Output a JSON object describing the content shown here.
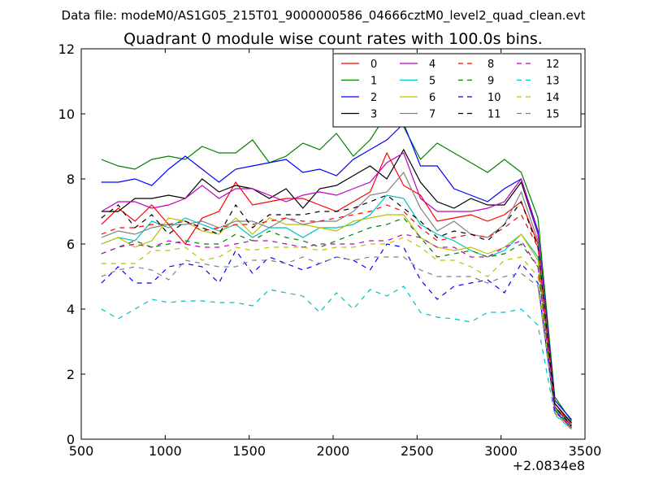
{
  "chart_data": {
    "type": "line",
    "suptitle": "Data file: modeM0/AS1G05_215T01_9000000586_04666cztM0_level2_quad_clean.evt",
    "title": "Quadrant 0 module wise count rates with 100.0s bins.",
    "xlabel": "",
    "ylabel": "",
    "x_offset_label": "+2.0834e8",
    "xlim": [
      500,
      3500
    ],
    "ylim": [
      0,
      12
    ],
    "x_ticks": [
      500,
      1000,
      1500,
      2000,
      2500,
      3000,
      3500
    ],
    "x_tick_labels": [
      "500",
      "1000",
      "1500",
      "2000",
      "2500",
      "3000",
      "3500"
    ],
    "y_ticks": [
      0,
      2,
      4,
      6,
      8,
      10,
      12
    ],
    "y_tick_labels": [
      "0",
      "2",
      "4",
      "6",
      "8",
      "10",
      "12"
    ],
    "grid": false,
    "legend": {
      "placement": "top-right",
      "columns": 4
    },
    "x": [
      620,
      720,
      820,
      920,
      1020,
      1120,
      1220,
      1320,
      1420,
      1520,
      1620,
      1720,
      1820,
      1920,
      2020,
      2120,
      2220,
      2320,
      2420,
      2520,
      2620,
      2720,
      2820,
      2920,
      3020,
      3120,
      3220,
      3320,
      3420
    ],
    "series": [
      {
        "name": "0",
        "color": "#ff0000",
        "dash": "solid",
        "values": [
          6.6,
          7.1,
          6.7,
          7.2,
          6.6,
          6.0,
          6.8,
          7.0,
          7.9,
          7.2,
          7.3,
          7.4,
          7.4,
          7.2,
          7.0,
          7.3,
          7.6,
          8.8,
          7.8,
          7.5,
          6.7,
          6.8,
          6.9,
          6.7,
          6.9,
          7.3,
          6.0,
          1.1,
          0.45
        ]
      },
      {
        "name": "1",
        "color": "#008000",
        "dash": "solid",
        "values": [
          8.6,
          8.4,
          8.3,
          8.6,
          8.7,
          8.6,
          9.0,
          8.8,
          8.8,
          9.2,
          8.5,
          8.7,
          9.1,
          8.9,
          9.4,
          8.7,
          9.2,
          10.0,
          9.6,
          8.6,
          9.1,
          8.8,
          8.5,
          8.2,
          8.6,
          8.2,
          6.8,
          1.3,
          0.55
        ]
      },
      {
        "name": "2",
        "color": "#0000ff",
        "dash": "solid",
        "values": [
          7.9,
          7.9,
          8.0,
          7.8,
          8.3,
          8.7,
          8.3,
          7.9,
          8.3,
          8.4,
          8.5,
          8.6,
          8.2,
          8.3,
          8.1,
          8.6,
          8.9,
          9.2,
          9.7,
          8.4,
          8.4,
          7.7,
          7.5,
          7.3,
          7.7,
          8.0,
          6.4,
          1.2,
          0.6
        ]
      },
      {
        "name": "3",
        "color": "#000000",
        "dash": "solid",
        "values": [
          7.0,
          7.0,
          7.4,
          7.4,
          7.5,
          7.4,
          8.0,
          7.6,
          7.8,
          7.7,
          7.4,
          7.7,
          7.1,
          7.7,
          7.8,
          8.1,
          8.4,
          8.0,
          8.9,
          7.9,
          7.3,
          7.1,
          7.4,
          7.2,
          7.2,
          7.9,
          6.3,
          1.1,
          0.5
        ]
      },
      {
        "name": "4",
        "color": "#bf00bf",
        "dash": "solid",
        "values": [
          7.0,
          7.3,
          7.3,
          7.1,
          7.2,
          7.4,
          7.8,
          7.4,
          7.7,
          7.7,
          7.5,
          7.3,
          7.5,
          7.6,
          7.5,
          7.7,
          7.9,
          8.5,
          8.8,
          7.4,
          7.0,
          7.0,
          7.0,
          7.1,
          7.3,
          8.0,
          6.3,
          1.0,
          0.45
        ]
      },
      {
        "name": "5",
        "color": "#00bfbf",
        "dash": "solid",
        "values": [
          6.0,
          6.2,
          6.1,
          6.7,
          6.5,
          6.8,
          6.6,
          6.4,
          6.6,
          6.2,
          6.5,
          6.5,
          6.2,
          6.5,
          6.5,
          6.6,
          6.9,
          7.5,
          7.4,
          6.6,
          6.3,
          6.1,
          5.8,
          5.6,
          5.8,
          6.3,
          5.6,
          0.95,
          0.4
        ]
      },
      {
        "name": "6",
        "color": "#bfbf00",
        "dash": "solid",
        "values": [
          6.0,
          6.2,
          5.9,
          6.1,
          6.8,
          6.7,
          6.4,
          6.3,
          6.8,
          6.3,
          6.8,
          6.6,
          6.6,
          6.5,
          6.4,
          6.7,
          6.8,
          6.9,
          6.9,
          6.2,
          5.9,
          5.8,
          5.9,
          5.7,
          5.9,
          6.3,
          5.5,
          0.85,
          0.35
        ]
      },
      {
        "name": "7",
        "color": "#808080",
        "dash": "solid",
        "values": [
          6.2,
          6.4,
          6.3,
          6.5,
          6.6,
          6.6,
          6.7,
          6.5,
          6.7,
          6.7,
          6.5,
          6.8,
          6.6,
          6.7,
          6.7,
          7.0,
          7.5,
          7.6,
          8.2,
          7.1,
          6.4,
          6.7,
          6.3,
          6.2,
          6.6,
          7.6,
          6.1,
          1.0,
          0.45
        ]
      },
      {
        "name": "8",
        "color": "#ff0000",
        "dash": "dashed",
        "values": [
          6.3,
          6.5,
          6.5,
          6.6,
          6.6,
          6.7,
          6.4,
          6.5,
          6.6,
          6.6,
          6.7,
          6.8,
          6.7,
          6.7,
          6.8,
          6.9,
          7.0,
          7.2,
          7.0,
          6.5,
          6.1,
          6.2,
          6.3,
          6.2,
          6.5,
          6.9,
          5.9,
          1.0,
          0.4
        ]
      },
      {
        "name": "9",
        "color": "#008000",
        "dash": "dashed",
        "values": [
          5.7,
          5.9,
          6.1,
          5.9,
          6.0,
          6.1,
          6.0,
          6.0,
          6.3,
          6.1,
          6.4,
          6.2,
          6.1,
          5.9,
          6.1,
          6.3,
          6.5,
          6.6,
          6.8,
          6.2,
          5.6,
          5.7,
          5.8,
          5.6,
          5.7,
          6.0,
          5.3,
          0.9,
          0.35
        ]
      },
      {
        "name": "10",
        "color": "#0000ff",
        "dash": "dashed",
        "values": [
          4.8,
          5.3,
          4.8,
          4.8,
          5.3,
          5.4,
          5.3,
          4.8,
          5.8,
          5.1,
          5.6,
          5.4,
          5.2,
          5.4,
          5.6,
          5.5,
          5.2,
          6.0,
          5.9,
          4.9,
          4.3,
          4.7,
          4.8,
          4.9,
          4.5,
          5.4,
          4.8,
          0.85,
          0.35
        ]
      },
      {
        "name": "11",
        "color": "#000000",
        "dash": "dashed",
        "values": [
          6.8,
          7.2,
          6.5,
          6.9,
          6.3,
          6.7,
          6.5,
          6.3,
          7.2,
          6.5,
          6.9,
          6.9,
          6.9,
          7.0,
          7.0,
          7.1,
          7.3,
          7.5,
          7.1,
          6.7,
          6.2,
          6.4,
          6.3,
          6.1,
          6.6,
          7.3,
          5.9,
          1.0,
          0.4
        ]
      },
      {
        "name": "12",
        "color": "#bf00bf",
        "dash": "dashed",
        "values": [
          5.7,
          5.9,
          6.0,
          5.9,
          6.1,
          6.0,
          5.9,
          5.9,
          6.0,
          6.1,
          6.1,
          6.0,
          5.9,
          6.0,
          6.0,
          6.0,
          6.1,
          6.1,
          6.3,
          6.2,
          5.9,
          5.9,
          5.6,
          5.6,
          5.9,
          6.1,
          5.3,
          0.9,
          0.35
        ]
      },
      {
        "name": "13",
        "color": "#00bfbf",
        "dash": "dashed",
        "values": [
          4.0,
          3.7,
          4.0,
          4.3,
          4.2,
          4.25,
          4.25,
          4.2,
          4.2,
          4.1,
          4.6,
          4.5,
          4.4,
          3.9,
          4.5,
          4.0,
          4.6,
          4.4,
          4.7,
          3.9,
          3.75,
          3.7,
          3.6,
          3.9,
          3.9,
          4.0,
          3.5,
          0.75,
          0.3
        ]
      },
      {
        "name": "14",
        "color": "#bfbf00",
        "dash": "dashed",
        "values": [
          5.4,
          5.4,
          5.4,
          5.8,
          5.8,
          5.9,
          5.5,
          5.6,
          5.9,
          5.8,
          5.9,
          5.9,
          5.9,
          5.8,
          5.9,
          5.9,
          6.0,
          6.0,
          6.2,
          5.9,
          5.5,
          5.5,
          5.3,
          5.0,
          5.5,
          5.6,
          5.0,
          0.8,
          0.3
        ]
      },
      {
        "name": "15",
        "color": "#808080",
        "dash": "dashed",
        "values": [
          5.0,
          5.2,
          5.3,
          5.2,
          4.9,
          5.5,
          5.4,
          5.3,
          5.3,
          5.5,
          5.5,
          5.4,
          5.6,
          5.4,
          5.6,
          5.5,
          5.6,
          5.6,
          5.6,
          5.2,
          5.0,
          5.0,
          5.0,
          4.8,
          5.0,
          5.1,
          4.7,
          0.8,
          0.3
        ]
      }
    ]
  }
}
